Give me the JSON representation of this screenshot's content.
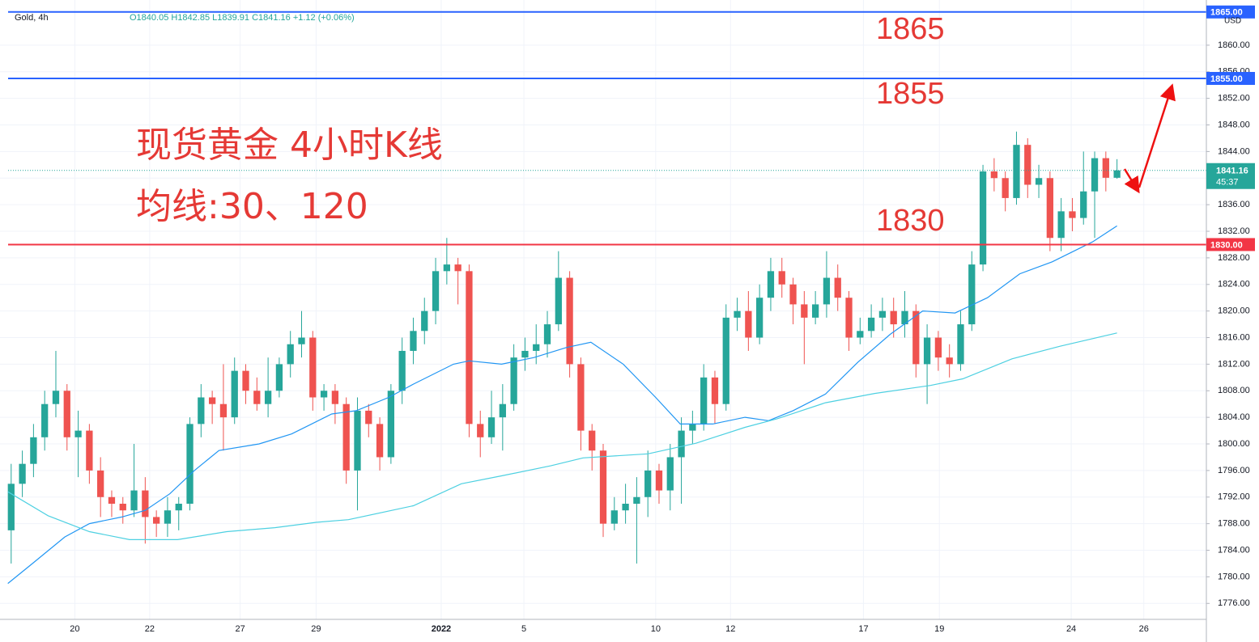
{
  "chart_data": {
    "type": "candlestick",
    "symbol": "Gold, 4h",
    "ohlc_header": "O1840.05 H1842.85 L1839.91 C1841.16 +1.12 (+0.06%)",
    "currency": "USD",
    "title": "现货黄金 4小时K线",
    "subtitle": "均线:30、120",
    "annotations": [
      "1865",
      "1855",
      "1830"
    ],
    "up_color": "#26a69a",
    "down_color": "#ef5350",
    "open": [
      1787,
      1794,
      1797,
      1801,
      1806,
      1808,
      1801,
      1802,
      1796,
      1792,
      1791,
      1790,
      1793,
      1789,
      1788,
      1790,
      1791,
      1803,
      1807,
      1806,
      1804,
      1811,
      1808,
      1806,
      1808,
      1812,
      1815,
      1816,
      1807,
      1808,
      1806,
      1796,
      1805,
      1803,
      1798,
      1808,
      1814,
      1817,
      1820,
      1826,
      1827,
      1826,
      1803,
      1801,
      1804,
      1806,
      1813,
      1814,
      1815,
      1818,
      1825,
      1812,
      1802,
      1799,
      1788,
      1790,
      1791,
      1792,
      1796,
      1793,
      1798,
      1802,
      1803,
      1810,
      1806,
      1819,
      1820,
      1816,
      1822,
      1826,
      1824,
      1821,
      1819,
      1821,
      1825,
      1822,
      1816,
      1817,
      1819,
      1820,
      1818,
      1820,
      1812,
      1816,
      1813,
      1812,
      1818,
      1827,
      1841,
      1840,
      1837,
      1845,
      1839,
      1840,
      1831,
      1835,
      1834,
      1838,
      1843,
      1840.05
    ],
    "high": [
      1797,
      1799,
      1803,
      1808,
      1814,
      1809,
      1805,
      1803,
      1798,
      1793,
      1792,
      1800,
      1795,
      1790,
      1792,
      1792,
      1804,
      1809,
      1808,
      1812,
      1813,
      1812,
      1810,
      1813,
      1813,
      1817,
      1820,
      1817,
      1809,
      1809,
      1807,
      1807,
      1806,
      1804,
      1809,
      1816,
      1819,
      1822,
      1828,
      1831,
      1828,
      1827,
      1805,
      1808,
      1809,
      1815,
      1816,
      1818,
      1820,
      1829,
      1826,
      1813,
      1803,
      1800,
      1792,
      1794,
      1795,
      1799,
      1797,
      1800,
      1804,
      1805,
      1812,
      1811,
      1821,
      1822,
      1823,
      1824,
      1828,
      1828,
      1825,
      1823,
      1823,
      1829,
      1827,
      1823,
      1819,
      1821,
      1822,
      1822,
      1823,
      1821,
      1818,
      1817,
      1815,
      1820,
      1829,
      1842,
      1843,
      1841,
      1847,
      1846,
      1842,
      1841,
      1837,
      1837,
      1844,
      1844,
      1844,
      1842.85
    ],
    "low": [
      1782,
      1792,
      1795,
      1799,
      1804,
      1799,
      1795,
      1794,
      1789,
      1789,
      1788,
      1789,
      1785,
      1786,
      1786,
      1787,
      1790,
      1801,
      1803,
      1799,
      1803,
      1806,
      1805,
      1804,
      1807,
      1810,
      1813,
      1805,
      1805,
      1803,
      1794,
      1790,
      1801,
      1796,
      1797,
      1806,
      1812,
      1815,
      1818,
      1824,
      1821,
      1801,
      1798,
      1800,
      1799,
      1805,
      1811,
      1812,
      1813,
      1817,
      1810,
      1799,
      1796,
      1786,
      1787,
      1788,
      1782,
      1789,
      1791,
      1790,
      1791,
      1800,
      1802,
      1803,
      1805,
      1817,
      1814,
      1815,
      1820,
      1822,
      1818,
      1812,
      1818,
      1819,
      1820,
      1814,
      1815,
      1816,
      1817,
      1816,
      1816,
      1810,
      1806,
      1811,
      1810,
      1811,
      1817,
      1826,
      1838,
      1835,
      1836,
      1837,
      1837,
      1829,
      1829,
      1832,
      1833,
      1831,
      1838,
      1839.91
    ],
    "close": [
      1794,
      1797,
      1801,
      1806,
      1808,
      1801,
      1802,
      1796,
      1792,
      1791,
      1790,
      1793,
      1789,
      1788,
      1790,
      1791,
      1803,
      1807,
      1806,
      1804,
      1811,
      1808,
      1806,
      1808,
      1812,
      1815,
      1816,
      1807,
      1808,
      1806,
      1796,
      1805,
      1803,
      1798,
      1808,
      1814,
      1817,
      1820,
      1826,
      1827,
      1826,
      1803,
      1801,
      1804,
      1806,
      1813,
      1814,
      1815,
      1818,
      1825,
      1812,
      1802,
      1799,
      1788,
      1790,
      1791,
      1792,
      1796,
      1793,
      1798,
      1802,
      1803,
      1810,
      1806,
      1819,
      1820,
      1816,
      1822,
      1826,
      1824,
      1821,
      1819,
      1821,
      1825,
      1822,
      1816,
      1817,
      1819,
      1820,
      1818,
      1820,
      1812,
      1816,
      1813,
      1812,
      1818,
      1827,
      1841,
      1840,
      1837,
      1845,
      1839,
      1840,
      1831,
      1835,
      1834,
      1838,
      1843,
      1840.05,
      1841.16
    ],
    "series": [
      {
        "color": "#2196f3",
        "x": [
          -0.3,
          1.9,
          4.8,
          7,
          9.9,
          12,
          14.2,
          16.4,
          18.6,
          22.2,
          25.1,
          28.7,
          30.9,
          33.8,
          36,
          39.6,
          41,
          43.9,
          46.8,
          49.7,
          51.9,
          54.8,
          57.7,
          59.9,
          62.8,
          65.7,
          67.8,
          70,
          72.9,
          75.8,
          78.7,
          81.6,
          84.5,
          87.4,
          90.3,
          93.2,
          96.8,
          99
        ],
        "values": [
          1779,
          1782,
          1786,
          1788,
          1789,
          1790,
          1792.5,
          1796,
          1799,
          1800,
          1801.5,
          1804.5,
          1805,
          1807,
          1809,
          1812,
          1812.5,
          1812,
          1813,
          1814.5,
          1815.3,
          1812,
          1807,
          1803,
          1803,
          1804,
          1803.5,
          1805,
          1807.5,
          1812.3,
          1816.5,
          1820,
          1819.7,
          1822,
          1825.6,
          1827.4,
          1830.4,
          1832.8
        ]
      },
      {
        "color": "#4dd0e1",
        "x": [
          -0.3,
          3.3,
          7,
          10.6,
          14.9,
          19.3,
          23.6,
          27.3,
          30.2,
          36,
          40.3,
          43.9,
          48.3,
          51.2,
          57,
          61.3,
          65.7,
          68.6,
          72.9,
          77.3,
          82.3,
          85.2,
          89.6,
          93.9,
          99
        ],
        "values": [
          1792.8,
          1789.2,
          1786.8,
          1785.6,
          1785.6,
          1786.8,
          1787.4,
          1788.2,
          1788.6,
          1790.7,
          1794,
          1795.2,
          1796.7,
          1797.9,
          1798.5,
          1800.1,
          1802.5,
          1803.8,
          1806.2,
          1807.6,
          1808.8,
          1809.8,
          1812.8,
          1814.7,
          1816.7
        ]
      }
    ],
    "levels": [
      {
        "value": 1865,
        "label": "1865.00",
        "color": "#2962ff"
      },
      {
        "value": 1855,
        "label": "1855.00",
        "color": "#2962ff"
      },
      {
        "value": 1830,
        "label": "1830.00",
        "color": "#f23645"
      }
    ],
    "last_price": 1841.16,
    "countdown": "45:37",
    "xlim": [
      -1,
      107
    ],
    "ylim": [
      1773.6,
      1866.8
    ],
    "yticks": [
      {
        "value": 1776,
        "label": "1776.00"
      },
      {
        "value": 1780,
        "label": "1780.00"
      },
      {
        "value": 1784,
        "label": "1784.00"
      },
      {
        "value": 1788,
        "label": "1788.00"
      },
      {
        "value": 1792,
        "label": "1792.00"
      },
      {
        "value": 1796,
        "label": "1796.00"
      },
      {
        "value": 1800,
        "label": "1800.00"
      },
      {
        "value": 1804,
        "label": "1804.00"
      },
      {
        "value": 1808,
        "label": "1808.00"
      },
      {
        "value": 1812,
        "label": "1812.00"
      },
      {
        "value": 1816,
        "label": "1816.00"
      },
      {
        "value": 1820,
        "label": "1820.00"
      },
      {
        "value": 1824,
        "label": "1824.00"
      },
      {
        "value": 1828,
        "label": "1828.00"
      },
      {
        "value": 1832,
        "label": "1832.00"
      },
      {
        "value": 1836,
        "label": "1836.00"
      },
      {
        "value": 1840,
        "label": "1840.00"
      },
      {
        "value": 1844,
        "label": "1844.00"
      },
      {
        "value": 1848,
        "label": "1848.00"
      },
      {
        "value": 1852,
        "label": "1852.00"
      },
      {
        "value": 1856,
        "label": "1856.00"
      },
      {
        "value": 1860,
        "label": "1860.00"
      }
    ],
    "xticks": [
      {
        "value": 5.7,
        "label": "20"
      },
      {
        "value": 12.4,
        "label": "22"
      },
      {
        "value": 20.5,
        "label": "27"
      },
      {
        "value": 27.3,
        "label": "29"
      },
      {
        "value": 38.5,
        "label": "2022"
      },
      {
        "value": 45.9,
        "label": "5"
      },
      {
        "value": 57.7,
        "label": "10"
      },
      {
        "value": 64.4,
        "label": "12"
      },
      {
        "value": 76.3,
        "label": "17"
      },
      {
        "value": 83.1,
        "label": "19"
      },
      {
        "value": 94.9,
        "label": "24"
      },
      {
        "value": 101.4,
        "label": "26"
      }
    ],
    "grid": true
  }
}
